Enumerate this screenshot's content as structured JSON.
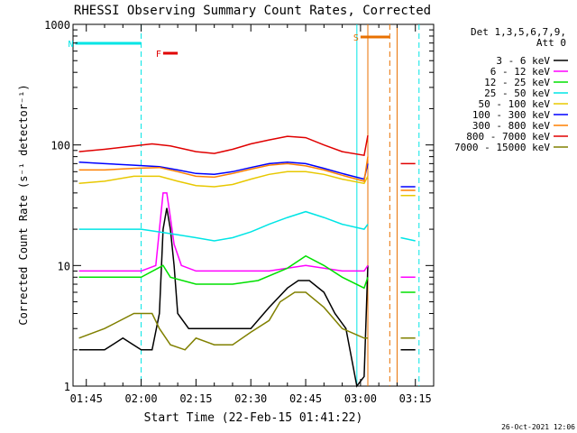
{
  "chart_data": {
    "type": "line",
    "title": "RHESSI Observing Summary Count Rates, Corrected",
    "xlabel": "Start Time (22-Feb-15 01:41:22)",
    "ylabel": "Corrected Count Rate (s⁻¹ detector⁻¹)",
    "y_scale": "log",
    "ylim": [
      1,
      1000
    ],
    "xlim": [
      "01:41:22",
      "03:20:00"
    ],
    "x_ticks": [
      "01:45",
      "02:00",
      "02:15",
      "02:30",
      "02:45",
      "03:00",
      "03:15"
    ],
    "y_ticks": [
      "1",
      "10",
      "100",
      "1000"
    ],
    "grid": false,
    "legend_placement": "right",
    "legend_header": [
      "Det 1,3,5,6,7,9,",
      "Att 0"
    ],
    "footer_date": "26-Oct-2021 12:06",
    "flags": [
      {
        "label": "N",
        "start": "01:42",
        "end": "02:00",
        "color": "#00e5e5"
      },
      {
        "label": "F",
        "start": "02:06",
        "end": "02:10",
        "color": "#e00000"
      },
      {
        "label": "S",
        "start": "03:00",
        "end": "03:08",
        "color": "#e87000"
      }
    ],
    "markers": [
      {
        "time": "02:00",
        "color": "#00e5e5",
        "style": "dashed"
      },
      {
        "time": "02:59",
        "color": "#00e5e5",
        "style": "solid"
      },
      {
        "time": "03:02",
        "color": "#e87000",
        "style": "solid"
      },
      {
        "time": "03:08",
        "color": "#e87000",
        "style": "dashed"
      },
      {
        "time": "03:10",
        "color": "#e87000",
        "style": "solid"
      },
      {
        "time": "03:16",
        "color": "#00e5e5",
        "style": "dashed"
      }
    ],
    "gap": {
      "start": "03:02",
      "end": "03:11"
    },
    "series": [
      {
        "name": "3 - 6 keV",
        "color": "#000000",
        "points": [
          [
            "01:43",
            2
          ],
          [
            "01:50",
            2
          ],
          [
            "01:55",
            2.5
          ],
          [
            "02:00",
            2
          ],
          [
            "02:03",
            2
          ],
          [
            "02:05",
            4
          ],
          [
            "02:06",
            20
          ],
          [
            "02:07",
            30
          ],
          [
            "02:08",
            20
          ],
          [
            "02:09",
            10
          ],
          [
            "02:10",
            4
          ],
          [
            "02:13",
            3
          ],
          [
            "02:20",
            3
          ],
          [
            "02:25",
            3
          ],
          [
            "02:30",
            3
          ],
          [
            "02:35",
            4.5
          ],
          [
            "02:40",
            6.5
          ],
          [
            "02:43",
            7.5
          ],
          [
            "02:46",
            7.5
          ],
          [
            "02:50",
            6
          ],
          [
            "02:53",
            4
          ],
          [
            "02:56",
            3
          ],
          [
            "02:59",
            1
          ],
          [
            "03:01",
            1.2
          ],
          [
            "03:02",
            10
          ],
          [
            "03:11",
            2
          ],
          [
            "03:15",
            2
          ]
        ]
      },
      {
        "name": "6 - 12 keV",
        "color": "#ff00ff",
        "points": [
          [
            "01:43",
            9
          ],
          [
            "01:50",
            9
          ],
          [
            "02:00",
            9
          ],
          [
            "02:04",
            10
          ],
          [
            "02:06",
            40
          ],
          [
            "02:07",
            40
          ],
          [
            "02:08",
            25
          ],
          [
            "02:09",
            15
          ],
          [
            "02:11",
            10
          ],
          [
            "02:15",
            9
          ],
          [
            "02:25",
            9
          ],
          [
            "02:35",
            9
          ],
          [
            "02:45",
            10
          ],
          [
            "02:55",
            9
          ],
          [
            "03:01",
            9
          ],
          [
            "03:02",
            10
          ],
          [
            "03:11",
            8
          ],
          [
            "03:15",
            8
          ]
        ]
      },
      {
        "name": "12 - 25 keV",
        "color": "#00e000",
        "points": [
          [
            "01:43",
            8
          ],
          [
            "01:50",
            8
          ],
          [
            "02:00",
            8
          ],
          [
            "02:06",
            10
          ],
          [
            "02:08",
            8
          ],
          [
            "02:15",
            7
          ],
          [
            "02:25",
            7
          ],
          [
            "02:32",
            7.5
          ],
          [
            "02:40",
            9.5
          ],
          [
            "02:45",
            12
          ],
          [
            "02:50",
            10
          ],
          [
            "02:55",
            8
          ],
          [
            "03:01",
            6.5
          ],
          [
            "03:02",
            8
          ],
          [
            "03:11",
            6
          ],
          [
            "03:15",
            6
          ]
        ]
      },
      {
        "name": "25 - 50 keV",
        "color": "#00e5e5",
        "points": [
          [
            "01:43",
            20
          ],
          [
            "01:50",
            20
          ],
          [
            "02:00",
            20
          ],
          [
            "02:05",
            19
          ],
          [
            "02:10",
            18
          ],
          [
            "02:15",
            17
          ],
          [
            "02:20",
            16
          ],
          [
            "02:25",
            17
          ],
          [
            "02:30",
            19
          ],
          [
            "02:35",
            22
          ],
          [
            "02:40",
            25
          ],
          [
            "02:45",
            28
          ],
          [
            "02:50",
            25
          ],
          [
            "02:55",
            22
          ],
          [
            "03:01",
            20
          ],
          [
            "03:02",
            22
          ],
          [
            "03:11",
            17
          ],
          [
            "03:15",
            16
          ]
        ]
      },
      {
        "name": "50 - 100 keV",
        "color": "#e8c800",
        "points": [
          [
            "01:43",
            48
          ],
          [
            "01:50",
            50
          ],
          [
            "01:58",
            55
          ],
          [
            "02:05",
            55
          ],
          [
            "02:10",
            50
          ],
          [
            "02:15",
            46
          ],
          [
            "02:20",
            45
          ],
          [
            "02:25",
            47
          ],
          [
            "02:30",
            52
          ],
          [
            "02:35",
            57
          ],
          [
            "02:40",
            60
          ],
          [
            "02:45",
            60
          ],
          [
            "02:50",
            57
          ],
          [
            "02:55",
            52
          ],
          [
            "03:01",
            48
          ],
          [
            "03:02",
            55
          ],
          [
            "03:11",
            38
          ],
          [
            "03:15",
            38
          ]
        ]
      },
      {
        "name": "100 - 300 keV",
        "color": "#0000ff",
        "points": [
          [
            "01:43",
            72
          ],
          [
            "01:50",
            70
          ],
          [
            "01:58",
            68
          ],
          [
            "02:05",
            66
          ],
          [
            "02:10",
            62
          ],
          [
            "02:15",
            58
          ],
          [
            "02:20",
            57
          ],
          [
            "02:25",
            60
          ],
          [
            "02:30",
            65
          ],
          [
            "02:35",
            70
          ],
          [
            "02:40",
            72
          ],
          [
            "02:45",
            70
          ],
          [
            "02:50",
            64
          ],
          [
            "02:55",
            58
          ],
          [
            "03:01",
            52
          ],
          [
            "03:02",
            70
          ],
          [
            "03:11",
            45
          ],
          [
            "03:15",
            45
          ]
        ]
      },
      {
        "name": "300 - 800 keV",
        "color": "#ff8000",
        "points": [
          [
            "01:43",
            62
          ],
          [
            "01:50",
            62
          ],
          [
            "01:58",
            64
          ],
          [
            "02:05",
            65
          ],
          [
            "02:10",
            60
          ],
          [
            "02:15",
            55
          ],
          [
            "02:20",
            54
          ],
          [
            "02:25",
            58
          ],
          [
            "02:30",
            63
          ],
          [
            "02:35",
            68
          ],
          [
            "02:40",
            70
          ],
          [
            "02:45",
            67
          ],
          [
            "02:50",
            62
          ],
          [
            "02:55",
            56
          ],
          [
            "03:01",
            50
          ],
          [
            "03:02",
            80
          ],
          [
            "03:11",
            42
          ],
          [
            "03:15",
            42
          ]
        ]
      },
      {
        "name": "800 - 7000 keV",
        "color": "#e00000",
        "points": [
          [
            "01:43",
            88
          ],
          [
            "01:50",
            92
          ],
          [
            "01:58",
            98
          ],
          [
            "02:03",
            102
          ],
          [
            "02:08",
            98
          ],
          [
            "02:15",
            88
          ],
          [
            "02:20",
            85
          ],
          [
            "02:25",
            92
          ],
          [
            "02:30",
            102
          ],
          [
            "02:35",
            110
          ],
          [
            "02:40",
            118
          ],
          [
            "02:45",
            115
          ],
          [
            "02:50",
            100
          ],
          [
            "02:55",
            88
          ],
          [
            "03:01",
            82
          ],
          [
            "03:02",
            120
          ],
          [
            "03:11",
            70
          ],
          [
            "03:15",
            70
          ]
        ]
      },
      {
        "name": "7000 - 15000 keV",
        "color": "#808000",
        "points": [
          [
            "01:43",
            2.5
          ],
          [
            "01:50",
            3
          ],
          [
            "01:58",
            4
          ],
          [
            "02:03",
            4
          ],
          [
            "02:05",
            3
          ],
          [
            "02:08",
            2.2
          ],
          [
            "02:12",
            2
          ],
          [
            "02:15",
            2.5
          ],
          [
            "02:20",
            2.2
          ],
          [
            "02:25",
            2.2
          ],
          [
            "02:30",
            2.8
          ],
          [
            "02:35",
            3.5
          ],
          [
            "02:38",
            5
          ],
          [
            "02:42",
            6
          ],
          [
            "02:45",
            6
          ],
          [
            "02:50",
            4.5
          ],
          [
            "02:55",
            3
          ],
          [
            "03:01",
            2.5
          ],
          [
            "03:02",
            2.5
          ],
          [
            "03:11",
            2.5
          ],
          [
            "03:15",
            2.5
          ]
        ]
      }
    ]
  }
}
